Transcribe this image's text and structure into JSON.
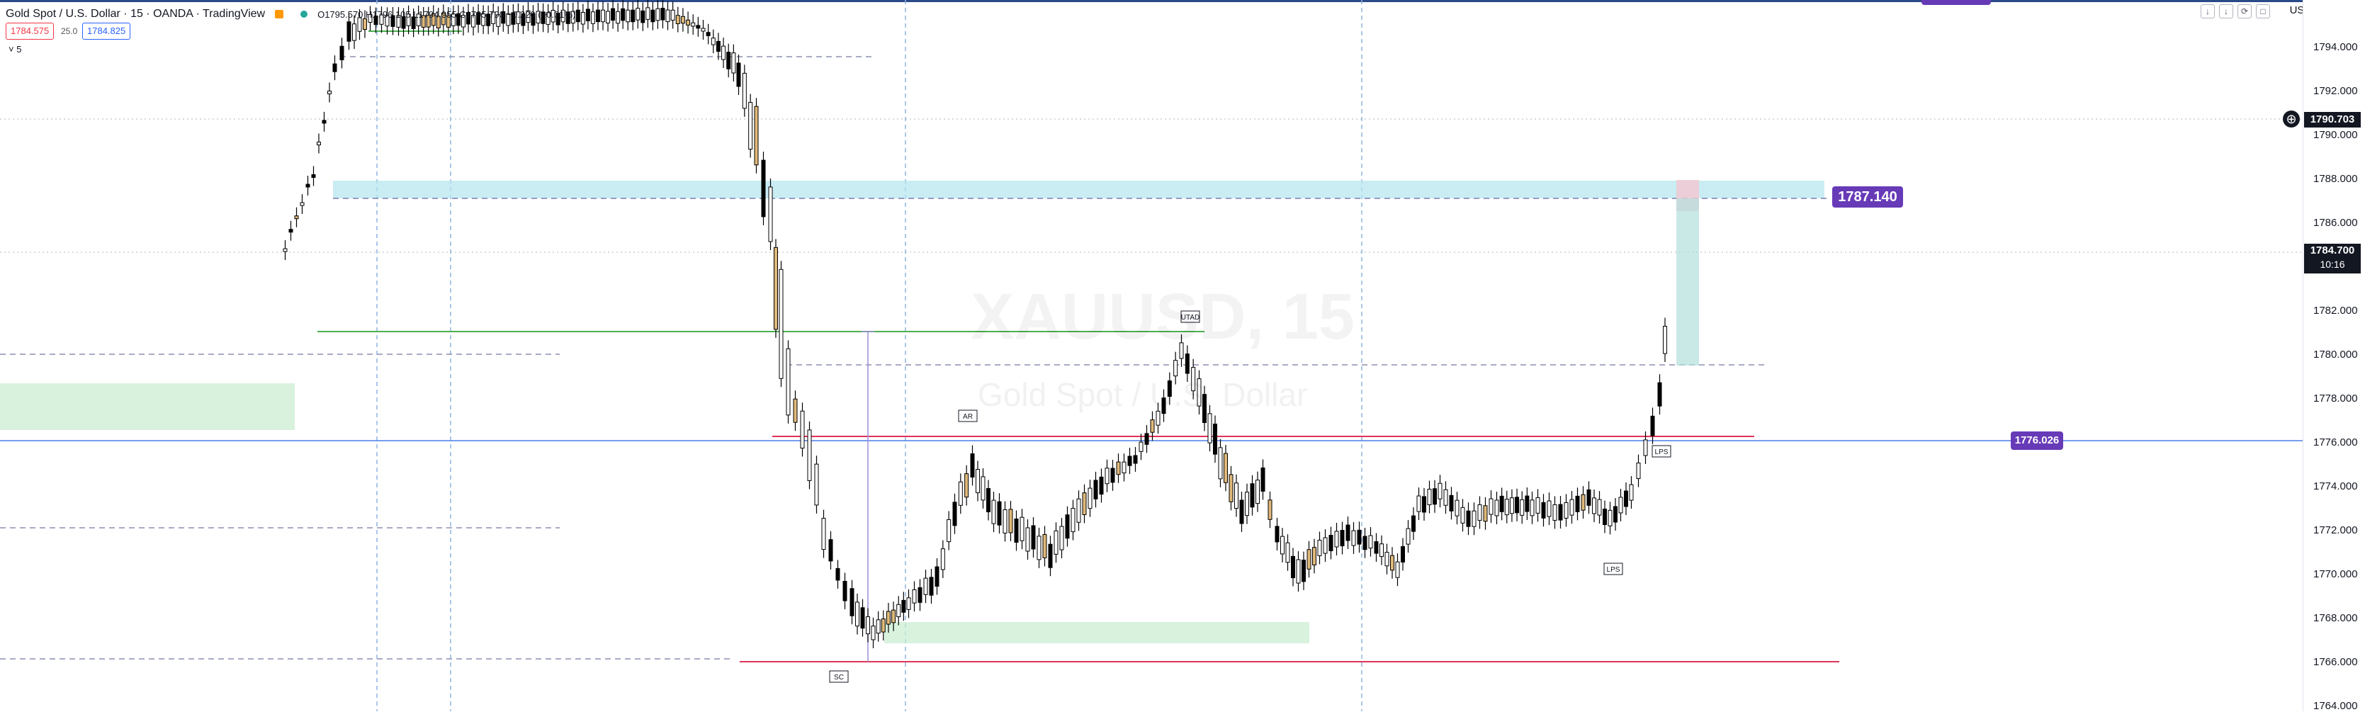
{
  "header": {
    "symbol": "Gold Spot / U.S. Dollar · 15 · OANDA · TradingView",
    "ohlc": "O1795.570 H1796.105 L1794.955 C1795.790 −0.220 (−0.01%)",
    "sell_price": "1784.575",
    "spread": "25.0",
    "buy_price": "1784.825",
    "interval_toggle": "˅ 5",
    "currency": "USD˅"
  },
  "watermark": {
    "ticker": "XAUUSD, 15",
    "name": "Gold Spot / U.S. Dollar"
  },
  "price_axis": {
    "ticks": [
      "1794.000",
      "1792.000",
      "1790.000",
      "1788.000",
      "1786.000",
      "1784.000",
      "1782.000",
      "1780.000",
      "1778.000",
      "1776.000",
      "1774.000",
      "1772.000",
      "1770.000",
      "1768.000",
      "1766.000",
      "1764.000"
    ],
    "crosshair_price": "1790.703",
    "last_price": "1784.700",
    "countdown": "10:16"
  },
  "drawing_labels": {
    "resistance": "1787.140",
    "support": "1776.026"
  },
  "annotations": [
    "SC",
    "AR",
    "UTAD",
    "LPS",
    "LPS"
  ],
  "colors": {
    "candle_up": "#ffffff",
    "candle_down": "#000000",
    "candle_accent": "#e0b97a",
    "zone_blue": "#b3e5f0",
    "zone_green": "#c8ecd0",
    "line_red": "#e0325a",
    "line_blue": "#4a7de8",
    "line_green": "#4caf50",
    "label_purple": "#673ab7"
  }
}
